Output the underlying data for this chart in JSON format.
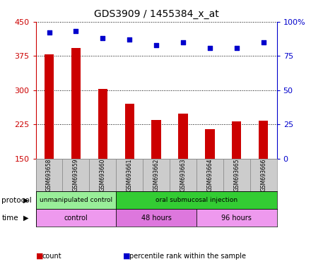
{
  "title": "GDS3909 / 1455384_x_at",
  "samples": [
    "GSM693658",
    "GSM693659",
    "GSM693660",
    "GSM693661",
    "GSM693662",
    "GSM693663",
    "GSM693664",
    "GSM693665",
    "GSM693666"
  ],
  "counts": [
    378,
    392,
    302,
    270,
    235,
    248,
    215,
    232,
    233
  ],
  "percentile_ranks": [
    92,
    93,
    88,
    87,
    83,
    85,
    81,
    81,
    85
  ],
  "ylim_left": [
    150,
    450
  ],
  "ylim_right": [
    0,
    100
  ],
  "yticks_left": [
    150,
    225,
    300,
    375,
    450
  ],
  "yticks_right": [
    0,
    25,
    50,
    75,
    100
  ],
  "bar_color": "#cc0000",
  "dot_color": "#0000cc",
  "bar_bottom": 150,
  "protocol_groups": [
    {
      "label": "unmanipulated control",
      "start": 0,
      "end": 3,
      "color": "#99ee99"
    },
    {
      "label": "oral submucosal injection",
      "start": 3,
      "end": 9,
      "color": "#33cc33"
    }
  ],
  "time_groups": [
    {
      "label": "control",
      "start": 0,
      "end": 3,
      "color": "#ee99ee"
    },
    {
      "label": "48 hours",
      "start": 3,
      "end": 6,
      "color": "#dd77dd"
    },
    {
      "label": "96 hours",
      "start": 6,
      "end": 9,
      "color": "#ee99ee"
    }
  ],
  "legend_items": [
    {
      "label": "count",
      "color": "#cc0000"
    },
    {
      "label": "percentile rank within the sample",
      "color": "#0000cc"
    }
  ],
  "left_axis_color": "#cc0000",
  "right_axis_color": "#0000cc",
  "background_color": "#ffffff",
  "grid_color": "#000000",
  "tick_area_color": "#cccccc"
}
